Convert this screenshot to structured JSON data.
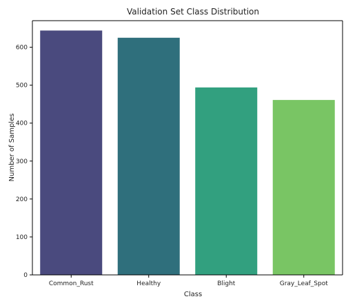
{
  "chart_data": {
    "type": "bar",
    "title": "Validation Set Class Distribution",
    "xlabel": "Class",
    "ylabel": "Number of Samples",
    "categories": [
      "Common_Rust",
      "Healthy",
      "Blight",
      "Gray_Leaf_Spot"
    ],
    "values": [
      644,
      625,
      494,
      461
    ],
    "ylim": [
      0,
      670
    ],
    "yticks": [
      0,
      100,
      200,
      300,
      400,
      500,
      600
    ],
    "grid": false,
    "colors": [
      "#4a4a7e",
      "#2f6f7c",
      "#32a07f",
      "#79c564"
    ]
  }
}
